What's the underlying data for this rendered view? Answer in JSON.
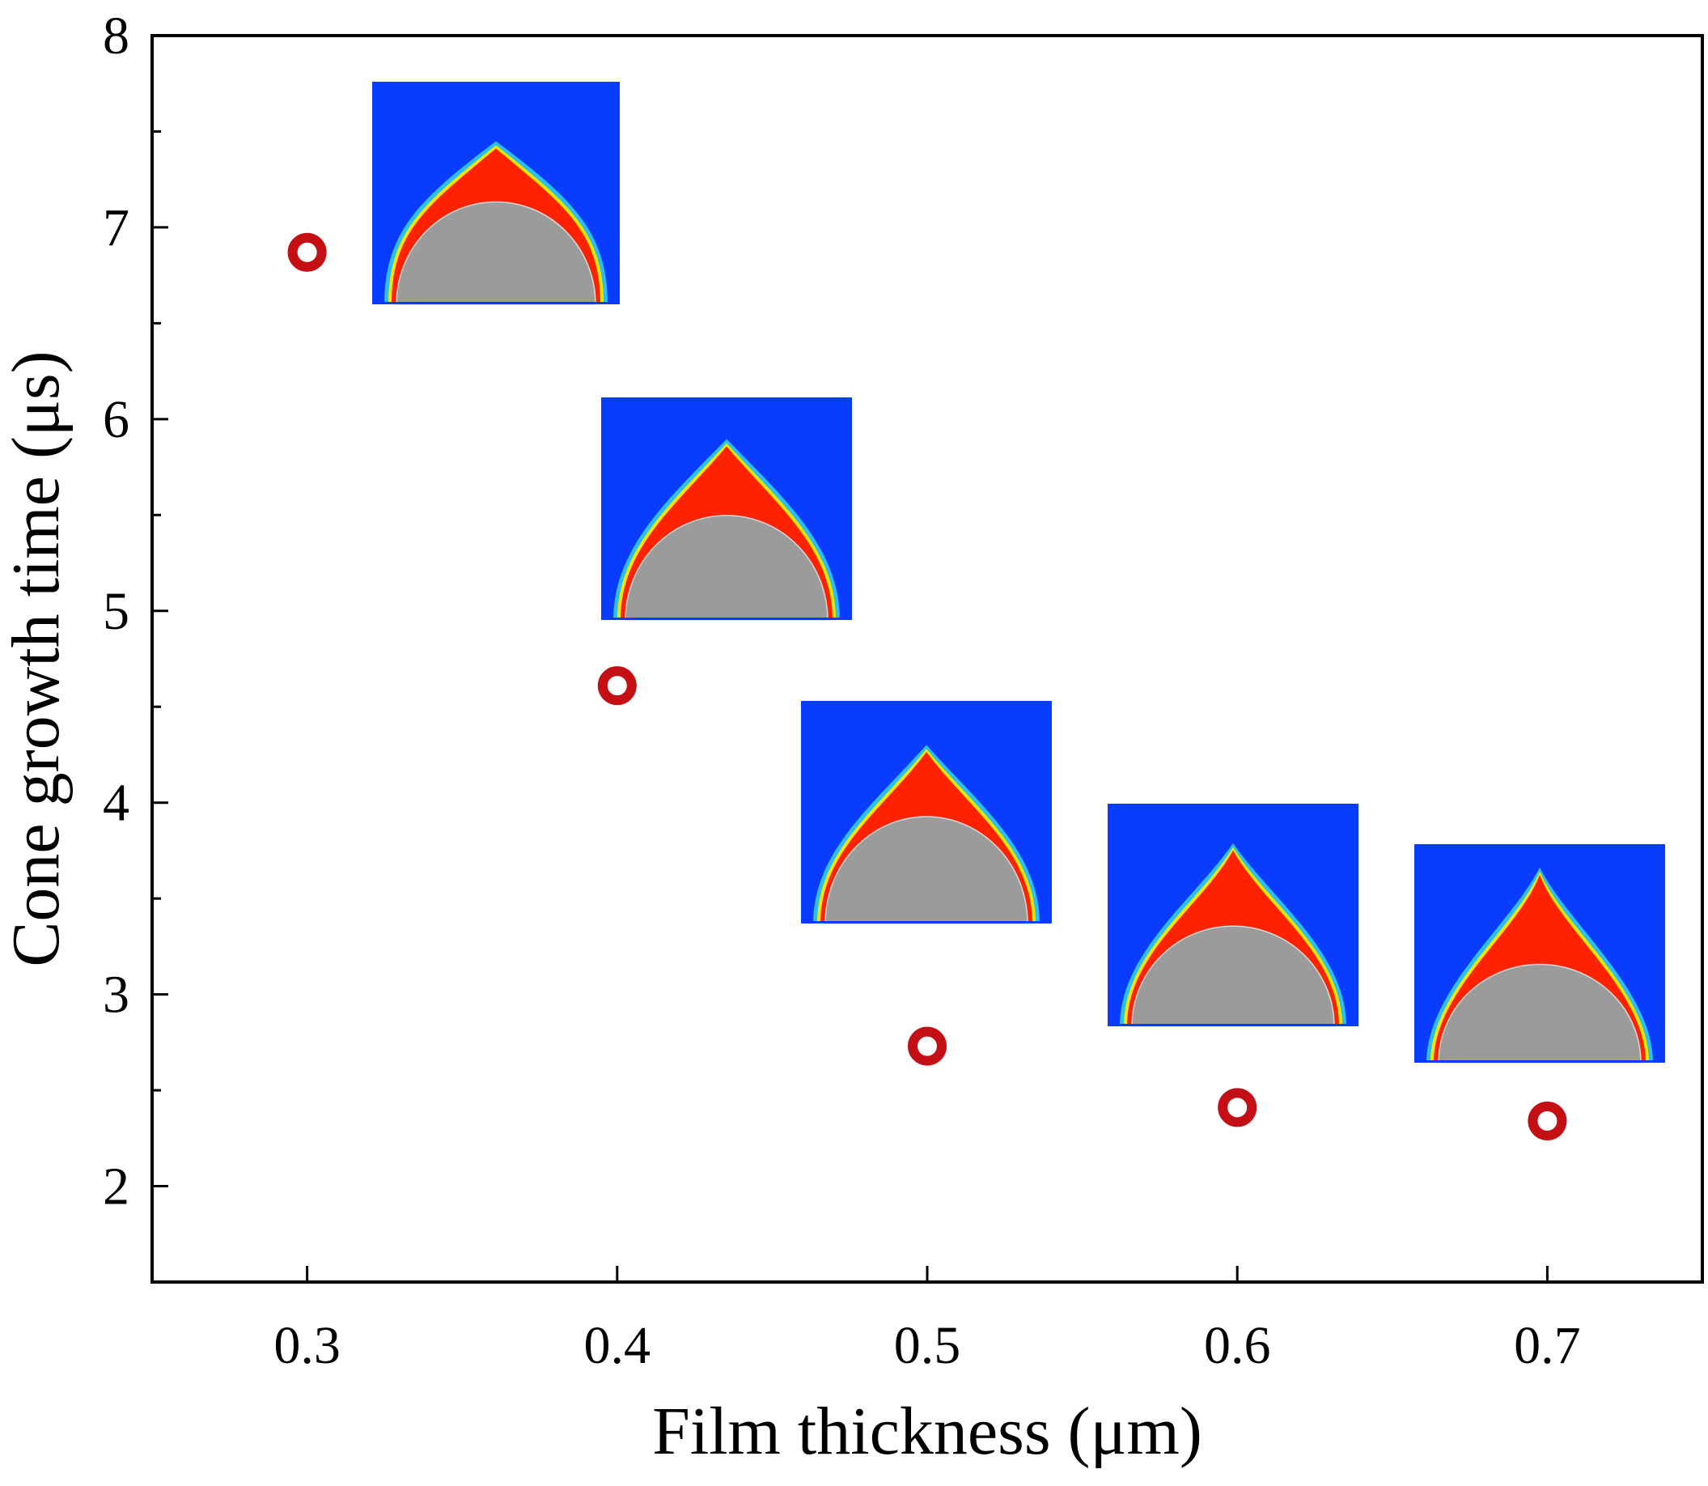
{
  "chart_data": {
    "type": "scatter",
    "title": "",
    "xlabel": "Film thickness (μm)",
    "ylabel": "Cone growth time (μs)",
    "xlim": [
      0.25,
      0.75
    ],
    "ylim": [
      1.5,
      8
    ],
    "xticks": [
      0.3,
      0.4,
      0.5,
      0.6,
      0.7
    ],
    "xtick_labels": [
      "0.3",
      "0.4",
      "0.5",
      "0.6",
      "0.7"
    ],
    "yticks": [
      2,
      3,
      4,
      5,
      6,
      7,
      8
    ],
    "ytick_labels": [
      "2",
      "3",
      "4",
      "5",
      "6",
      "7",
      "8"
    ],
    "y_minor_step": 0.5,
    "grid": false,
    "legend": "none",
    "marker": "open-circle",
    "series": [
      {
        "name": "Cone growth time",
        "x": [
          0.3,
          0.4,
          0.5,
          0.6,
          0.7
        ],
        "y": [
          6.87,
          4.61,
          2.73,
          2.41,
          2.34
        ]
      }
    ],
    "insets": [
      {
        "name": "cone-inset-0.3",
        "film_thickness": 0.3,
        "description": "simulated cone profile"
      },
      {
        "name": "cone-inset-0.4",
        "film_thickness": 0.4,
        "description": "simulated cone profile"
      },
      {
        "name": "cone-inset-0.5",
        "film_thickness": 0.5,
        "description": "simulated cone profile"
      },
      {
        "name": "cone-inset-0.6",
        "film_thickness": 0.6,
        "description": "simulated cone profile"
      },
      {
        "name": "cone-inset-0.7",
        "film_thickness": 0.7,
        "description": "simulated cone profile"
      }
    ]
  },
  "colors": {
    "marker": "#c40f14",
    "axis": "#000000",
    "inset_background": "#0a3cff",
    "inset_cone": "#ff2200",
    "inset_edge_cyan": "#2cc8f0",
    "inset_edge_yellow": "#f2e600",
    "inset_droplet": "#9b9b9b"
  }
}
